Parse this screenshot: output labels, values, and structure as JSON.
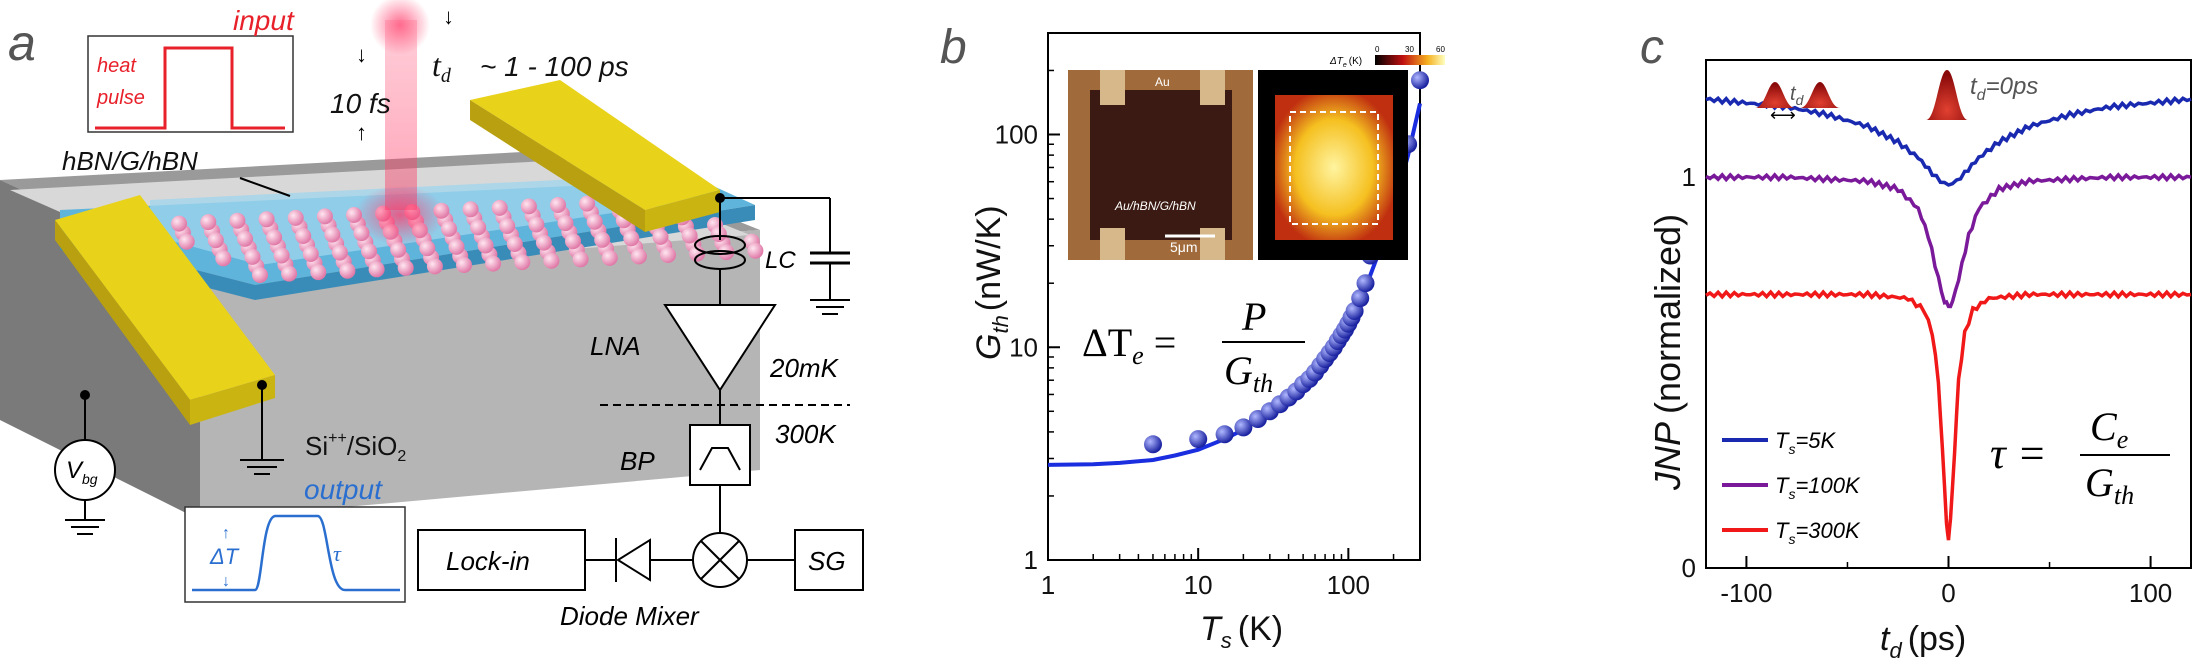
{
  "panel_a": {
    "letter": "a",
    "input_label": "input",
    "input_box_lines": [
      "heat",
      "pulse"
    ],
    "pulse_width": "10 fs",
    "delay_label": "t",
    "delay_sub": "d",
    "delay_range": "~ 1 - 100 ps",
    "stack_label": "hBN/G/hBN",
    "substrate_label": "Si",
    "substrate_sup": "++",
    "substrate_rest": "/SiO",
    "substrate_sub": "2",
    "vbg_main": "V",
    "vbg_sub": "bg",
    "lc": "LC",
    "lna": "LNA",
    "temp_low": "20mK",
    "temp_high": "300K",
    "bp": "BP",
    "output_label": "output",
    "output_dt": "ΔT",
    "output_tau": "τ",
    "lockin": "Lock-in",
    "sg": "SG",
    "diode_mixer": "Diode Mixer",
    "colors": {
      "gold": "#e8d21a",
      "blue": "#5fb4dc",
      "red": "#e8202a",
      "out_blue": "#2a6fd0"
    }
  },
  "panel_b": {
    "letter": "b",
    "ylabel_main": "G",
    "ylabel_sub": "th",
    "ylabel_unit": "(nW/K)",
    "xlabel_main": "T",
    "xlabel_sub": "s",
    "xlabel_unit": "(K)",
    "equation": {
      "lhs": "ΔT",
      "lhs_sub": "e",
      "num": "P",
      "den": "G",
      "den_sub": "th"
    },
    "inset_left": {
      "label_top": "Au",
      "label_mid": "Au/hBN/G/hBN",
      "scale": "5μm"
    },
    "inset_right": {
      "colorbar_label": "ΔT",
      "colorbar_sub": "e",
      "colorbar_unit": "(K)",
      "ticks": [
        "0",
        "30",
        "60"
      ]
    },
    "chart_data": {
      "type": "scatter",
      "xscale": "log",
      "yscale": "log",
      "xlim": [
        1,
        300
      ],
      "ylim": [
        1,
        300
      ],
      "x_ticks": [
        "1",
        "10",
        "100"
      ],
      "y_ticks": [
        "1",
        "10",
        "100"
      ],
      "series": [
        {
          "marker": "circle",
          "x": [
            5,
            10,
            15,
            20,
            25,
            30,
            35,
            40,
            45,
            50,
            55,
            60,
            65,
            70,
            75,
            80,
            85,
            90,
            95,
            100,
            105,
            110,
            120,
            130,
            140,
            200,
            250,
            300
          ],
          "y": [
            3.5,
            3.7,
            3.9,
            4.2,
            4.6,
            5.0,
            5.4,
            5.8,
            6.2,
            6.7,
            7.1,
            7.6,
            8.2,
            8.8,
            9.4,
            10.0,
            10.7,
            11.4,
            12.1,
            12.9,
            13.8,
            14.8,
            17,
            20,
            27,
            55,
            90,
            180
          ],
          "color": "#2a3ab8"
        },
        {
          "marker": "line",
          "x": [
            1,
            2,
            3,
            5,
            7,
            10,
            15,
            20,
            30,
            40,
            50,
            70,
            100,
            130,
            160,
            200,
            250,
            300
          ],
          "y": [
            2.8,
            2.82,
            2.86,
            2.95,
            3.1,
            3.3,
            3.7,
            4.1,
            5.0,
            5.9,
            6.9,
            9.0,
            13.0,
            19.0,
            28.0,
            45.0,
            80.0,
            140.0
          ],
          "color": "#1a2ee0"
        }
      ]
    }
  },
  "panel_c": {
    "letter": "c",
    "ylabel": "JNP (normalized)",
    "ylabel_italic": "JNP",
    "ylabel_rest": "(normalized)",
    "xlabel_main": "t",
    "xlabel_sub": "d",
    "xlabel_unit": "(ps)",
    "pulse_label_delay": "t",
    "pulse_label_delay_sub": "d",
    "pulse_label_zero": "t",
    "pulse_label_zero_sub": "d",
    "pulse_label_zero_rest": "=0ps",
    "equation": {
      "lhs": "τ",
      "num": "C",
      "num_sub": "e",
      "den": "G",
      "den_sub": "th"
    },
    "chart_data": {
      "type": "line",
      "xlim": [
        -120,
        120
      ],
      "ylim": [
        0,
        1.3
      ],
      "x_ticks": [
        "-100",
        "0",
        "100"
      ],
      "y_ticks": [
        "0",
        "1"
      ],
      "series": [
        {
          "name": "T_s=5K",
          "legend_main": "T",
          "legend_sub": "s",
          "legend_rest": "=5K",
          "color": "#1a2ab0",
          "x": [
            -120,
            -100,
            -80,
            -60,
            -40,
            -25,
            -15,
            -8,
            -4,
            0,
            4,
            8,
            15,
            25,
            40,
            60,
            80,
            100,
            120
          ],
          "y": [
            1.2,
            1.19,
            1.18,
            1.16,
            1.13,
            1.09,
            1.05,
            1.01,
            0.99,
            0.98,
            0.99,
            1.01,
            1.05,
            1.09,
            1.13,
            1.16,
            1.18,
            1.19,
            1.2
          ]
        },
        {
          "name": "T_s=100K",
          "legend_main": "T",
          "legend_sub": "s",
          "legend_rest": "=100K",
          "color": "#7a1a9a",
          "x": [
            -120,
            -80,
            -40,
            -25,
            -15,
            -10,
            -5,
            -2,
            0,
            2,
            5,
            10,
            15,
            25,
            40,
            80,
            120
          ],
          "y": [
            1.0,
            1.0,
            0.99,
            0.97,
            0.92,
            0.85,
            0.74,
            0.68,
            0.67,
            0.68,
            0.74,
            0.85,
            0.92,
            0.97,
            0.99,
            1.0,
            1.0
          ]
        },
        {
          "name": "T_s=300K",
          "legend_main": "T",
          "legend_sub": "s",
          "legend_rest": "=300K",
          "color": "#f01818",
          "x": [
            -120,
            -80,
            -40,
            -20,
            -12,
            -8,
            -5,
            -3,
            -1,
            0,
            1,
            3,
            5,
            8,
            12,
            20,
            40,
            80,
            120
          ],
          "y": [
            0.7,
            0.7,
            0.7,
            0.69,
            0.66,
            0.6,
            0.48,
            0.3,
            0.12,
            0.07,
            0.12,
            0.3,
            0.48,
            0.6,
            0.66,
            0.69,
            0.7,
            0.7,
            0.7
          ]
        }
      ]
    }
  }
}
